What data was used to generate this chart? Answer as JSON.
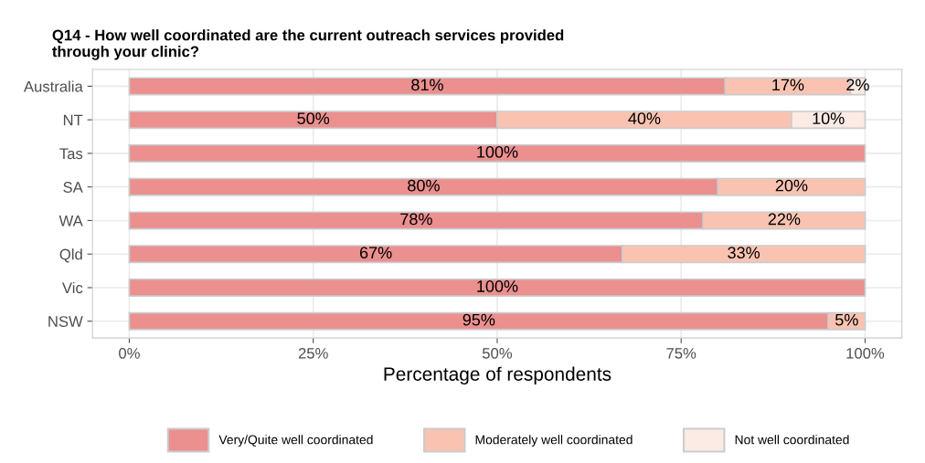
{
  "chart_data": {
    "type": "bar",
    "orientation": "horizontal",
    "stacked": true,
    "title": "Q14 - How well coordinated are the current outreach services provided\nthrough your clinic?",
    "xlabel": "Percentage of respondents",
    "categories": [
      "Australia",
      "NT",
      "Tas",
      "SA",
      "WA",
      "Qld",
      "Vic",
      "NSW"
    ],
    "series": [
      {
        "name": "Very/Quite well coordinated",
        "color": "#eb8f8f",
        "values": [
          81,
          50,
          100,
          80,
          78,
          67,
          100,
          95
        ],
        "value_labels": [
          "81%",
          "50%",
          "100%",
          "80%",
          "78%",
          "67%",
          "100%",
          "95%"
        ]
      },
      {
        "name": "Moderately well coordinated",
        "color": "#fac3b1",
        "values": [
          17,
          40,
          null,
          20,
          22,
          33,
          null,
          5
        ],
        "value_labels": [
          "17%",
          "40%",
          null,
          "20%",
          "22%",
          "33%",
          null,
          "5%"
        ]
      },
      {
        "name": "Not well coordinated",
        "color": "#fcebe5",
        "values": [
          2,
          10,
          null,
          null,
          null,
          null,
          null,
          null
        ],
        "value_labels": [
          "2%",
          "10%",
          null,
          null,
          null,
          null,
          null,
          null
        ]
      }
    ],
    "xlim": [
      -5,
      105
    ],
    "xticks": [
      {
        "value": 0,
        "label": "0%"
      },
      {
        "value": 25,
        "label": "25%"
      },
      {
        "value": 50,
        "label": "50%"
      },
      {
        "value": 75,
        "label": "75%"
      },
      {
        "value": 100,
        "label": "100%"
      }
    ],
    "grid": true,
    "legend": "bottom"
  }
}
